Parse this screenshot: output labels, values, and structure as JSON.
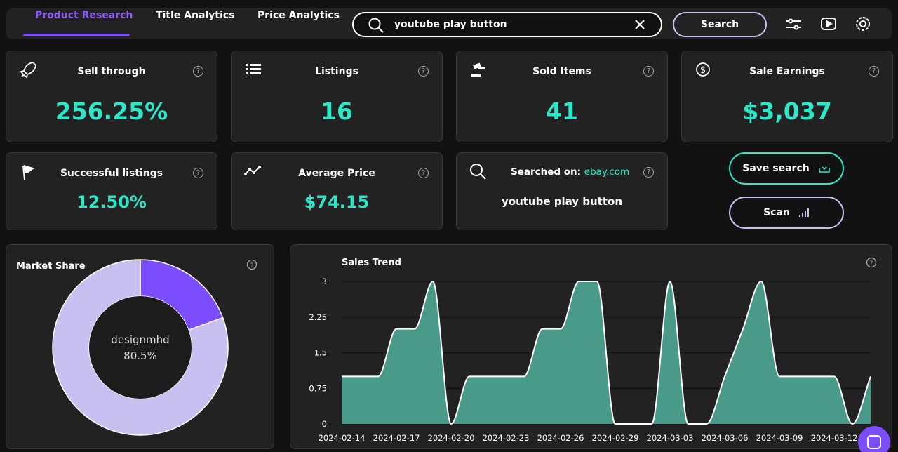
{
  "nav": {
    "tabs": [
      "Product Research",
      "Title Analytics",
      "Price Analytics"
    ],
    "search_query": "youtube play button",
    "search_button": "Search"
  },
  "stats": [
    {
      "label": "Sell through",
      "value": "256.25%"
    },
    {
      "label": "Listings",
      "value": "16"
    },
    {
      "label": "Sold Items",
      "value": "41"
    },
    {
      "label": "Sale Earnings",
      "value": "$3,037"
    },
    {
      "label": "Successful listings",
      "value": "12.50%"
    },
    {
      "label": "Average Price",
      "value": "$74.15"
    }
  ],
  "searched_on": {
    "label": "Searched on:",
    "site": "ebay.com",
    "query": "youtube play button"
  },
  "actions": [
    "Save search",
    "Scan"
  ],
  "chart_data": [
    {
      "type": "pie",
      "title": "Market Share",
      "categories": [
        "designmhd",
        null
      ],
      "values": [
        80.5,
        19.5
      ],
      "value_labels": [
        "80.5%",
        null
      ],
      "colors": [
        "#c9c0f2",
        "#7b4dff"
      ]
    },
    {
      "type": "area",
      "title": "Sales Trend",
      "x": [
        "2024-02-14",
        "2024-02-15",
        "2024-02-16",
        "2024-02-17",
        "2024-02-18",
        "2024-02-19",
        "2024-02-20",
        "2024-02-21",
        "2024-02-22",
        "2024-02-23",
        "2024-02-24",
        "2024-02-25",
        "2024-02-26",
        "2024-02-27",
        "2024-02-28",
        "2024-02-29",
        "2024-03-01",
        "2024-03-02",
        "2024-03-03",
        "2024-03-04",
        "2024-03-05",
        "2024-03-06",
        "2024-03-07",
        "2024-03-08",
        "2024-03-09",
        "2024-03-10",
        "2024-03-11",
        "2024-03-12",
        "2024-03-13",
        "2024-03-14"
      ],
      "values": [
        1,
        1,
        1,
        2,
        2,
        3,
        0,
        1,
        1,
        1,
        1,
        2,
        2,
        3,
        3,
        0,
        0,
        0,
        3,
        0,
        0,
        1,
        2,
        3,
        1,
        1,
        1,
        1,
        0,
        1
      ],
      "ylim": [
        0,
        3
      ],
      "yticks": [
        0,
        0.75,
        1.5,
        2.25,
        3
      ],
      "grid": true,
      "color": "#4a9a8a",
      "line_color": "#ffffff"
    }
  ]
}
